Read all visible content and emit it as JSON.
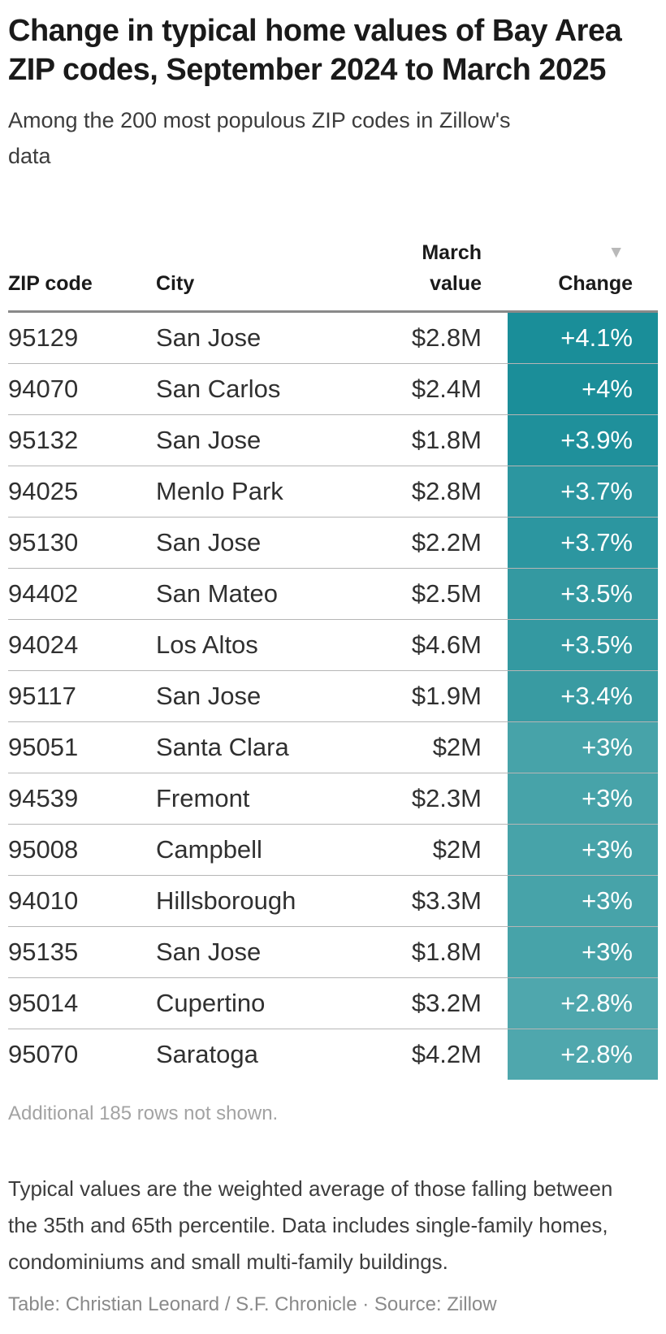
{
  "header": {
    "title": "Change in typical home values of Bay Area ZIP codes, September 2024 to March 2025",
    "subtitle": "Among the 200 most populous ZIP codes in Zillow's data"
  },
  "chart_data": {
    "type": "table",
    "title": "Change in typical home values of Bay Area ZIP codes, September 2024 to March 2025",
    "subtitle": "Among the 200 most populous ZIP codes in Zillow's data",
    "columns": [
      {
        "label": "ZIP code",
        "align": "left"
      },
      {
        "label": "City",
        "align": "left"
      },
      {
        "label": "March\nvalue",
        "align": "right"
      },
      {
        "label": "Change",
        "align": "right"
      }
    ],
    "sort": {
      "column": "Change",
      "direction": "descending",
      "indicator": "▼"
    },
    "heatmap_colors": {
      "max": "#1a8e99",
      "min": "#4fa7ad"
    },
    "rows": [
      {
        "zip": "95129",
        "city": "San Jose",
        "value": "$2.8M",
        "change": "+4.1%",
        "change_value": 4.1,
        "color": "#1a8e99"
      },
      {
        "zip": "94070",
        "city": "San Carlos",
        "value": "$2.4M",
        "change": "+4%",
        "change_value": 4.0,
        "color": "#1b8e99"
      },
      {
        "zip": "95132",
        "city": "San Jose",
        "value": "$1.8M",
        "change": "+3.9%",
        "change_value": 3.9,
        "color": "#1f909b"
      },
      {
        "zip": "94025",
        "city": "Menlo Park",
        "value": "$2.8M",
        "change": "+3.7%",
        "change_value": 3.7,
        "color": "#2c96a0"
      },
      {
        "zip": "95130",
        "city": "San Jose",
        "value": "$2.2M",
        "change": "+3.7%",
        "change_value": 3.7,
        "color": "#2c96a0"
      },
      {
        "zip": "94402",
        "city": "San Mateo",
        "value": "$2.5M",
        "change": "+3.5%",
        "change_value": 3.5,
        "color": "#3499a1"
      },
      {
        "zip": "94024",
        "city": "Los Altos",
        "value": "$4.6M",
        "change": "+3.5%",
        "change_value": 3.5,
        "color": "#3499a1"
      },
      {
        "zip": "95117",
        "city": "San Jose",
        "value": "$1.9M",
        "change": "+3.4%",
        "change_value": 3.4,
        "color": "#399ba2"
      },
      {
        "zip": "95051",
        "city": "Santa Clara",
        "value": "$2M",
        "change": "+3%",
        "change_value": 3.0,
        "color": "#47a3a9"
      },
      {
        "zip": "94539",
        "city": "Fremont",
        "value": "$2.3M",
        "change": "+3%",
        "change_value": 3.0,
        "color": "#47a3a9"
      },
      {
        "zip": "95008",
        "city": "Campbell",
        "value": "$2M",
        "change": "+3%",
        "change_value": 3.0,
        "color": "#47a3a9"
      },
      {
        "zip": "94010",
        "city": "Hillsborough",
        "value": "$3.3M",
        "change": "+3%",
        "change_value": 3.0,
        "color": "#47a3a9"
      },
      {
        "zip": "95135",
        "city": "San Jose",
        "value": "$1.8M",
        "change": "+3%",
        "change_value": 3.0,
        "color": "#47a3a9"
      },
      {
        "zip": "95014",
        "city": "Cupertino",
        "value": "$3.2M",
        "change": "+2.8%",
        "change_value": 2.8,
        "color": "#4fa7ad"
      },
      {
        "zip": "95070",
        "city": "Saratoga",
        "value": "$4.2M",
        "change": "+2.8%",
        "change_value": 2.8,
        "color": "#4fa7ad"
      }
    ]
  },
  "notes": {
    "additional_rows": "Additional 185 rows not shown.",
    "footnote": "Typical values are the weighted average of those falling between the 35th and 65th percentile. Data includes single-family homes, condominiums and small multi-family buildings.",
    "credits": "Table: Christian Leonard / S.F. Chronicle · Source: Zillow"
  }
}
